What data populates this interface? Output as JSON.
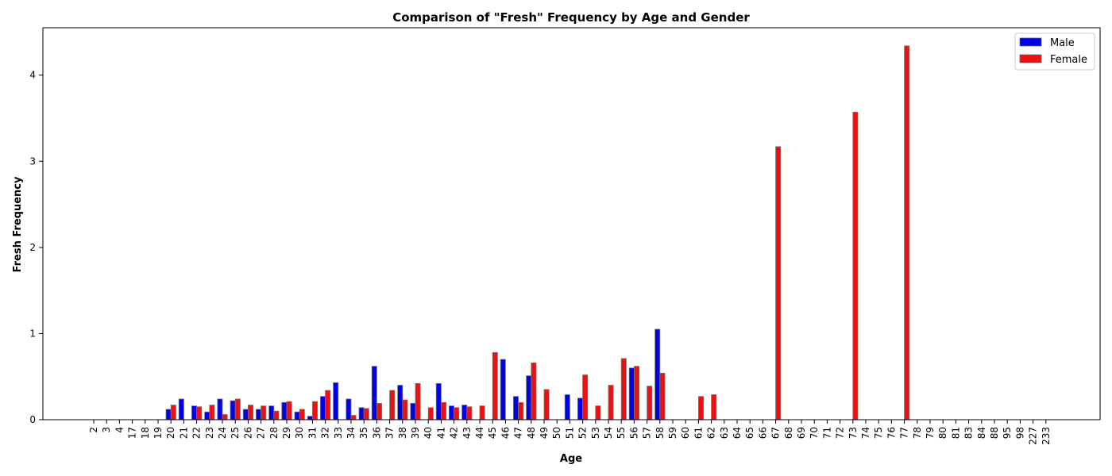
{
  "chart_data": {
    "type": "bar",
    "title": "Comparison of \"Fresh\" Frequency by Age and Gender",
    "xlabel": "Age",
    "ylabel": "Fresh Frequency",
    "ylim": [
      0,
      4.55
    ],
    "yticks": [
      0,
      1,
      2,
      3,
      4
    ],
    "legend_position": "top-right",
    "categories": [
      "2",
      "3",
      "4",
      "17",
      "18",
      "19",
      "20",
      "21",
      "22",
      "23",
      "24",
      "25",
      "26",
      "27",
      "28",
      "29",
      "30",
      "31",
      "32",
      "33",
      "34",
      "35",
      "36",
      "37",
      "38",
      "39",
      "40",
      "41",
      "42",
      "43",
      "44",
      "45",
      "46",
      "47",
      "48",
      "49",
      "50",
      "51",
      "52",
      "53",
      "54",
      "55",
      "56",
      "57",
      "58",
      "59",
      "60",
      "61",
      "62",
      "63",
      "64",
      "65",
      "66",
      "67",
      "68",
      "69",
      "70",
      "71",
      "72",
      "73",
      "74",
      "75",
      "76",
      "77",
      "78",
      "79",
      "80",
      "81",
      "83",
      "84",
      "88",
      "95",
      "98",
      "227",
      "233"
    ],
    "series": [
      {
        "name": "Male",
        "color": "#0000e6",
        "values": [
          0,
          0,
          0,
          0,
          0,
          0,
          0.12,
          0.24,
          0.16,
          0.09,
          0.24,
          0.22,
          0.12,
          0.12,
          0.16,
          0.2,
          0.09,
          0.04,
          0.27,
          0.43,
          0.24,
          0.14,
          0.62,
          0,
          0.4,
          0.19,
          0,
          0.42,
          0.16,
          0.17,
          0,
          0,
          0.7,
          0.27,
          0.51,
          0,
          0,
          0.29,
          0.25,
          0,
          0,
          0,
          0.6,
          0,
          1.05,
          0,
          0,
          0,
          0,
          0,
          0,
          0,
          0,
          0,
          0,
          0,
          0,
          0,
          0,
          0,
          0,
          0,
          0,
          0,
          0,
          0,
          0,
          0,
          0,
          0,
          0,
          0,
          0,
          0,
          0
        ]
      },
      {
        "name": "Female",
        "color": "#ee1010",
        "values": [
          0,
          0,
          0,
          0,
          0,
          0,
          0.17,
          0,
          0.15,
          0.17,
          0.06,
          0.24,
          0.17,
          0.16,
          0.1,
          0.21,
          0.12,
          0.21,
          0.34,
          0,
          0.05,
          0.13,
          0.19,
          0.34,
          0.23,
          0.42,
          0.14,
          0.2,
          0.14,
          0.15,
          0.16,
          0.78,
          0,
          0.2,
          0.66,
          0.35,
          0,
          0,
          0.52,
          0.16,
          0.4,
          0.71,
          0.62,
          0.39,
          0.54,
          0,
          0,
          0.27,
          0.29,
          0,
          0,
          0,
          0,
          3.17,
          0,
          0,
          0,
          0,
          0,
          3.57,
          0,
          0,
          0,
          4.34,
          0,
          0,
          0,
          0,
          0,
          0,
          0,
          0,
          0,
          0,
          0
        ]
      }
    ]
  }
}
